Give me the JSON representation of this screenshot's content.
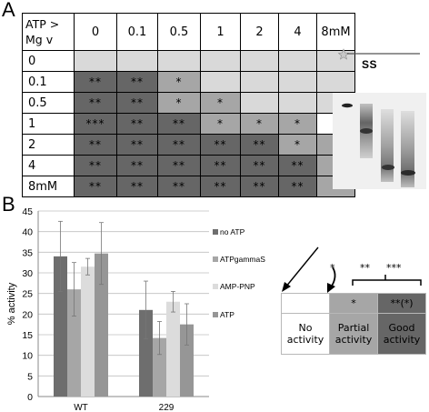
{
  "panel_labels": {
    "a": "A",
    "b": "B"
  },
  "panelA": {
    "corner_line1": "ATP >",
    "corner_line2": "Mg v",
    "columns": [
      "0",
      "0.1",
      "0.5",
      "1",
      "2",
      "4",
      "8mM"
    ],
    "rows": [
      {
        "label": "0",
        "cells": [
          "",
          "",
          "",
          "",
          "",
          "",
          ""
        ]
      },
      {
        "label": "0.1",
        "cells": [
          "**",
          "**",
          "*",
          "",
          "",
          "",
          ""
        ]
      },
      {
        "label": "0.5",
        "cells": [
          "**",
          "**",
          "*",
          "*",
          "",
          "",
          ""
        ]
      },
      {
        "label": "1",
        "cells": [
          "***",
          "**",
          "**",
          "*",
          "*",
          "*",
          ""
        ]
      },
      {
        "label": "2",
        "cells": [
          "**",
          "**",
          "**",
          "**",
          "**",
          "*",
          "*"
        ]
      },
      {
        "label": "4",
        "cells": [
          "**",
          "**",
          "**",
          "**",
          "**",
          "**",
          "*"
        ]
      },
      {
        "label": "8mM",
        "cells": [
          "**",
          "**",
          "**",
          "**",
          "**",
          "**",
          "*"
        ]
      }
    ],
    "ss_label": "SS",
    "colors": {
      "none": "#d9d9d9",
      "blank": "#ffffff",
      "partial": "#a6a6a6",
      "good": "#666666"
    }
  },
  "legend_table": {
    "top_symbols": {
      "one": "*",
      "two": "**",
      "three": "***"
    },
    "header": [
      "",
      "*",
      "**(*)"
    ],
    "labels": [
      {
        "line1": "No",
        "line2": "activity"
      },
      {
        "line1": "Partial",
        "line2": "activity"
      },
      {
        "line1": "Good",
        "line2": "activity"
      }
    ],
    "colors": [
      "#ffffff",
      "#a6a6a6",
      "#666666"
    ]
  },
  "chart_data": {
    "type": "bar",
    "categories": [
      "WT",
      "229"
    ],
    "ylabel": "% activity",
    "ylim": [
      0,
      45
    ],
    "yticks": [
      0,
      5,
      10,
      15,
      20,
      25,
      30,
      35,
      40,
      45
    ],
    "grid": true,
    "legend_position": "right",
    "series": [
      {
        "name": "no ATP",
        "color": "#6e6e6e",
        "values": [
          34,
          21
        ],
        "errors": [
          8.5,
          7
        ]
      },
      {
        "name": "ATPgammaS",
        "color": "#a6a6a6",
        "values": [
          26,
          14.2
        ],
        "errors": [
          6.5,
          4
        ]
      },
      {
        "name": "AMP-PNP",
        "color": "#dcdcdc",
        "values": [
          31.5,
          23
        ],
        "errors": [
          2,
          2.5
        ]
      },
      {
        "name": "ATP",
        "color": "#969696",
        "values": [
          34.7,
          17.5
        ],
        "errors": [
          7.5,
          5
        ]
      }
    ]
  }
}
